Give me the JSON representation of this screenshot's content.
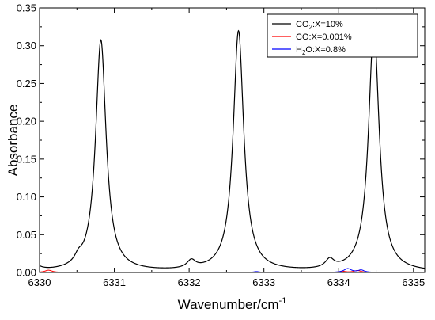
{
  "chart_data": {
    "type": "line",
    "xlabel_main": "Wavenumber/cm",
    "xlabel_sup": "-1",
    "ylabel": "Absorbance",
    "xlim": [
      6330.0,
      6335.15
    ],
    "ylim": [
      0.0,
      0.35
    ],
    "x_ticks": [
      6330,
      6331,
      6332,
      6333,
      6334,
      6335
    ],
    "x_tick_labels": [
      "6330",
      "6331",
      "6332",
      "6333",
      "6334",
      "6335"
    ],
    "y_ticks": [
      0.0,
      0.05,
      0.1,
      0.15,
      0.2,
      0.25,
      0.3,
      0.35
    ],
    "y_tick_labels": [
      "0.00",
      "0.05",
      "0.10",
      "0.15",
      "0.20",
      "0.25",
      "0.30",
      "0.35"
    ],
    "legend_position": "top-right",
    "grid": false,
    "series": [
      {
        "legend": {
          "prefix": "CO",
          "sub": "2",
          "suffix": ":X=10%"
        },
        "color": "#000000",
        "peaks": [
          {
            "center": 6330.82,
            "height": 0.3065,
            "width": 0.085
          },
          {
            "center": 6332.66,
            "height": 0.3183,
            "width": 0.085
          },
          {
            "center": 6334.47,
            "height": 0.3245,
            "width": 0.085
          },
          {
            "center": 6330.52,
            "height": 0.0085,
            "width": 0.06
          },
          {
            "center": 6332.03,
            "height": 0.0105,
            "width": 0.07
          },
          {
            "center": 6333.88,
            "height": 0.0115,
            "width": 0.07
          },
          {
            "center": 6329.93,
            "height": 0.0085,
            "width": 0.09
          }
        ]
      },
      {
        "legend": {
          "prefix": "CO",
          "sub": "",
          "suffix": ":X=0.001%"
        },
        "color": "#ff0000",
        "peaks": [
          {
            "center": 6330.12,
            "height": 0.003,
            "width": 0.06
          },
          {
            "center": 6334.25,
            "height": 0.0025,
            "width": 0.06
          },
          {
            "center": 6334.05,
            "height": 0.0015,
            "width": 0.05
          }
        ]
      },
      {
        "legend": {
          "prefix": "H",
          "sub": "2",
          "suffix": "O:X=0.8%"
        },
        "color": "#0000ff",
        "peaks": [
          {
            "center": 6334.12,
            "height": 0.005,
            "width": 0.06
          },
          {
            "center": 6334.3,
            "height": 0.003,
            "width": 0.05
          },
          {
            "center": 6332.9,
            "height": 0.0012,
            "width": 0.05
          }
        ]
      }
    ]
  }
}
